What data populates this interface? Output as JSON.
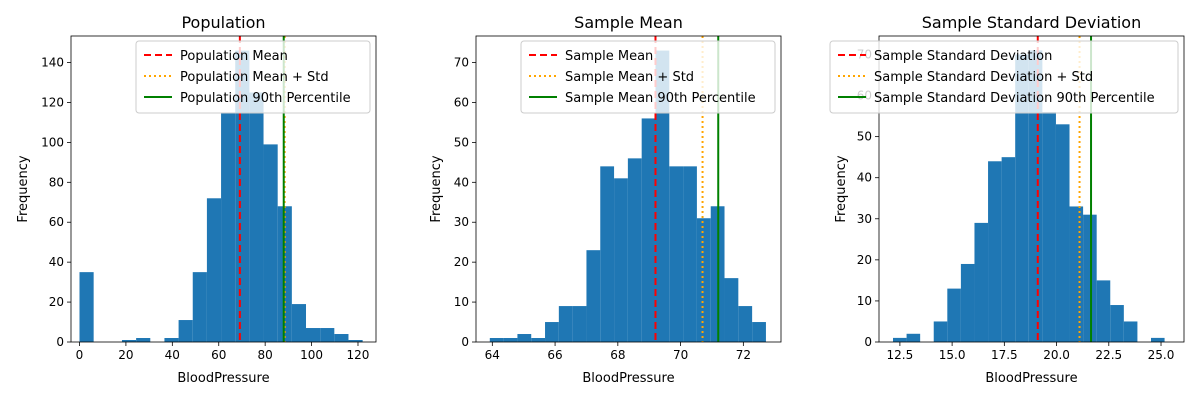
{
  "colors": {
    "bar": "#1f77b4",
    "mean": "#ff0000",
    "std": "#ffa500",
    "percentile": "#008000",
    "axis": "#000000"
  },
  "chart_data": [
    {
      "type": "bar",
      "title": "Population",
      "xlabel": "BloodPressure",
      "ylabel": "Frequency",
      "xlim": [
        -3.66,
        127.76
      ],
      "ylim": [
        0,
        153.3
      ],
      "xticks": [
        0,
        20,
        40,
        60,
        80,
        100,
        120
      ],
      "yticks": [
        0,
        20,
        40,
        60,
        80,
        100,
        120,
        140
      ],
      "bins": [
        {
          "x0": 0.0,
          "x1": 6.1,
          "count": 35
        },
        {
          "x0": 18.3,
          "x1": 24.4,
          "count": 1
        },
        {
          "x0": 24.4,
          "x1": 30.5,
          "count": 2
        },
        {
          "x0": 36.6,
          "x1": 42.7,
          "count": 2
        },
        {
          "x0": 42.7,
          "x1": 48.8,
          "count": 11
        },
        {
          "x0": 48.8,
          "x1": 54.9,
          "count": 35
        },
        {
          "x0": 54.9,
          "x1": 61.0,
          "count": 72
        },
        {
          "x0": 61.0,
          "x1": 67.1,
          "count": 115
        },
        {
          "x0": 67.1,
          "x1": 73.2,
          "count": 146
        },
        {
          "x0": 73.2,
          "x1": 79.3,
          "count": 125
        },
        {
          "x0": 79.3,
          "x1": 85.4,
          "count": 99
        },
        {
          "x0": 85.4,
          "x1": 91.5,
          "count": 68
        },
        {
          "x0": 91.5,
          "x1": 97.6,
          "count": 19
        },
        {
          "x0": 97.6,
          "x1": 103.7,
          "count": 7
        },
        {
          "x0": 103.7,
          "x1": 109.8,
          "count": 7
        },
        {
          "x0": 109.8,
          "x1": 115.9,
          "count": 4
        },
        {
          "x0": 115.9,
          "x1": 122.0,
          "count": 1
        }
      ],
      "lines": [
        {
          "label": "Population Mean",
          "x": 69.1,
          "style": "dashed",
          "color": "#ff0000"
        },
        {
          "label": "Population Mean + Std",
          "x": 88.4,
          "style": "dotted",
          "color": "#ffa500"
        },
        {
          "label": "Population 90th Percentile",
          "x": 88.0,
          "style": "solid",
          "color": "#008000"
        }
      ],
      "legend": "top-right"
    },
    {
      "type": "bar",
      "title": "Sample Mean",
      "xlabel": "BloodPressure",
      "ylabel": "Frequency",
      "xlim": [
        63.48,
        73.2
      ],
      "ylim": [
        0,
        76.65
      ],
      "xticks": [
        64,
        66,
        68,
        70,
        72
      ],
      "yticks": [
        0,
        10,
        20,
        30,
        40,
        50,
        60,
        70
      ],
      "bins": [
        {
          "x0": 63.92,
          "x1": 64.36,
          "count": 1
        },
        {
          "x0": 64.36,
          "x1": 64.8,
          "count": 1
        },
        {
          "x0": 64.8,
          "x1": 65.24,
          "count": 2
        },
        {
          "x0": 65.24,
          "x1": 65.68,
          "count": 1
        },
        {
          "x0": 65.68,
          "x1": 66.12,
          "count": 5
        },
        {
          "x0": 66.12,
          "x1": 66.56,
          "count": 9
        },
        {
          "x0": 66.56,
          "x1": 67.0,
          "count": 9
        },
        {
          "x0": 67.0,
          "x1": 67.44,
          "count": 23
        },
        {
          "x0": 67.44,
          "x1": 67.88,
          "count": 44
        },
        {
          "x0": 67.88,
          "x1": 68.32,
          "count": 41
        },
        {
          "x0": 68.32,
          "x1": 68.76,
          "count": 46
        },
        {
          "x0": 68.76,
          "x1": 69.2,
          "count": 56
        },
        {
          "x0": 69.2,
          "x1": 69.64,
          "count": 73
        },
        {
          "x0": 69.64,
          "x1": 70.08,
          "count": 44
        },
        {
          "x0": 70.08,
          "x1": 70.52,
          "count": 44
        },
        {
          "x0": 70.52,
          "x1": 70.96,
          "count": 31
        },
        {
          "x0": 70.96,
          "x1": 71.4,
          "count": 34
        },
        {
          "x0": 71.4,
          "x1": 71.84,
          "count": 16
        },
        {
          "x0": 71.84,
          "x1": 72.28,
          "count": 9
        },
        {
          "x0": 72.28,
          "x1": 72.72,
          "count": 5
        }
      ],
      "lines": [
        {
          "label": "Sample Mean",
          "x": 69.2,
          "style": "dashed",
          "color": "#ff0000"
        },
        {
          "label": "Sample Mean + Std",
          "x": 70.7,
          "style": "dotted",
          "color": "#ffa500"
        },
        {
          "label": "Sample Mean 90th Percentile",
          "x": 71.2,
          "style": "solid",
          "color": "#008000"
        }
      ],
      "legend": "top-right"
    },
    {
      "type": "bar",
      "title": "Sample Standard Deviation",
      "xlabel": "BloodPressure",
      "ylabel": "Frequency",
      "xlim": [
        11.5,
        26.1
      ],
      "ylim": [
        0,
        74.5
      ],
      "xticks": [
        12.5,
        15.0,
        17.5,
        20.0,
        22.5,
        25.0
      ],
      "xtick_labels": [
        "12.5",
        "15.0",
        "17.5",
        "20.0",
        "22.5",
        "25.0"
      ],
      "yticks": [
        0,
        10,
        20,
        30,
        40,
        50,
        60,
        70
      ],
      "bins": [
        {
          "x0": 12.17,
          "x1": 12.82,
          "count": 1
        },
        {
          "x0": 12.82,
          "x1": 13.47,
          "count": 2
        },
        {
          "x0": 14.12,
          "x1": 14.77,
          "count": 5
        },
        {
          "x0": 14.77,
          "x1": 15.42,
          "count": 13
        },
        {
          "x0": 15.42,
          "x1": 16.07,
          "count": 19
        },
        {
          "x0": 16.07,
          "x1": 16.72,
          "count": 29
        },
        {
          "x0": 16.72,
          "x1": 17.37,
          "count": 44
        },
        {
          "x0": 17.37,
          "x1": 18.02,
          "count": 45
        },
        {
          "x0": 18.02,
          "x1": 18.67,
          "count": 70
        },
        {
          "x0": 18.67,
          "x1": 19.32,
          "count": 71
        },
        {
          "x0": 19.32,
          "x1": 19.97,
          "count": 56
        },
        {
          "x0": 19.97,
          "x1": 20.62,
          "count": 53
        },
        {
          "x0": 20.62,
          "x1": 21.27,
          "count": 33
        },
        {
          "x0": 21.27,
          "x1": 21.92,
          "count": 31
        },
        {
          "x0": 21.92,
          "x1": 22.57,
          "count": 15
        },
        {
          "x0": 22.57,
          "x1": 23.22,
          "count": 9
        },
        {
          "x0": 23.22,
          "x1": 23.87,
          "count": 5
        },
        {
          "x0": 24.52,
          "x1": 25.17,
          "count": 1
        }
      ],
      "lines": [
        {
          "label": "Sample Standard Deviation",
          "x": 19.1,
          "style": "dashed",
          "color": "#ff0000"
        },
        {
          "label": "Sample Standard Deviation + Std",
          "x": 21.1,
          "style": "dotted",
          "color": "#ffa500"
        },
        {
          "label": "Sample Standard Deviation 90th Percentile",
          "x": 21.65,
          "style": "solid",
          "color": "#008000"
        }
      ],
      "legend": "top-right"
    }
  ]
}
